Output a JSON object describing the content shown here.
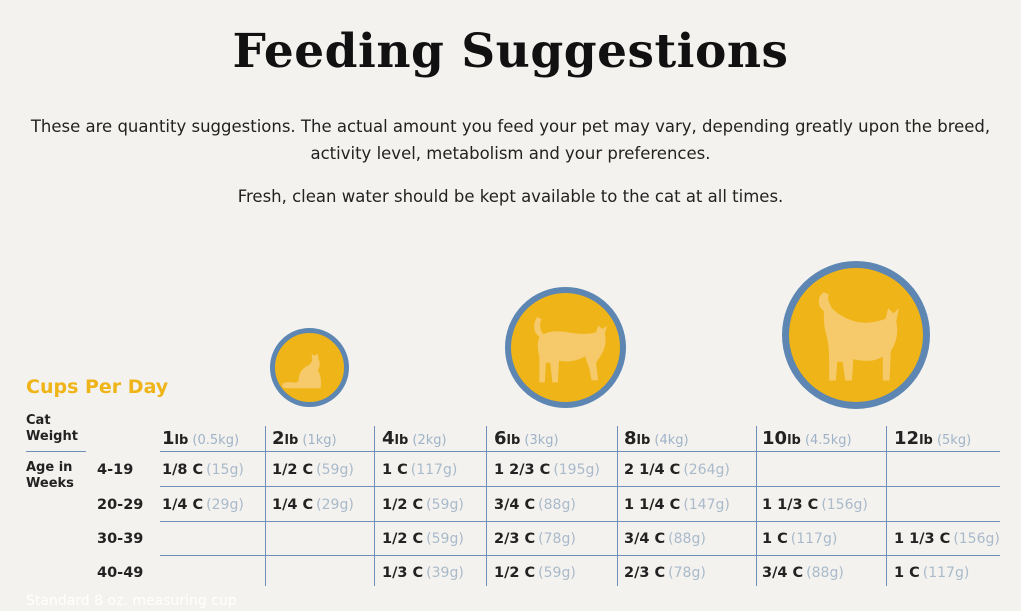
{
  "title": "Feeding Suggestions",
  "intro_line1": "These are quantity suggestions. The actual amount you feed your pet may vary, depending greatly upon the breed,",
  "intro_line2": "activity level, metabolism and your preferences.",
  "water_note": "Fresh, clean water should be kept available to the cat at all times.",
  "table_title": "Cups Per Day",
  "row_label_weight_1": "Cat",
  "row_label_weight_2": "Weight",
  "row_label_age_1": "Age in",
  "row_label_age_2": "Weeks",
  "weights": [
    {
      "num": "1",
      "unit": "lb",
      "metric": "(0.5kg)"
    },
    {
      "num": "2",
      "unit": "lb",
      "metric": "(1kg)"
    },
    {
      "num": "4",
      "unit": "lb",
      "metric": "(2kg)"
    },
    {
      "num": "6",
      "unit": "lb",
      "metric": "(3kg)"
    },
    {
      "num": "8",
      "unit": "lb",
      "metric": "(4kg)"
    },
    {
      "num": "10",
      "unit": "lb",
      "metric": "(4.5kg)"
    },
    {
      "num": "12",
      "unit": "lb",
      "metric": "(5kg)"
    }
  ],
  "rows": [
    {
      "weeks": "4-19",
      "cells": [
        {
          "q": "1/8 C",
          "g": "(15g)"
        },
        {
          "q": "1/2 C",
          "g": "(59g)"
        },
        {
          "q": "1 C",
          "g": "(117g)"
        },
        {
          "q": "1 2/3 C",
          "g": "(195g)"
        },
        {
          "q": "2 1/4 C",
          "g": "(264g)"
        },
        {
          "q": "",
          "g": ""
        },
        {
          "q": "",
          "g": ""
        }
      ]
    },
    {
      "weeks": "20-29",
      "cells": [
        {
          "q": "1/4 C",
          "g": "(29g)"
        },
        {
          "q": "1/4 C",
          "g": "(29g)"
        },
        {
          "q": "1/2 C",
          "g": "(59g)"
        },
        {
          "q": "3/4 C",
          "g": "(88g)"
        },
        {
          "q": "1 1/4 C",
          "g": "(147g)"
        },
        {
          "q": "1 1/3 C",
          "g": "(156g)"
        },
        {
          "q": "",
          "g": ""
        }
      ]
    },
    {
      "weeks": "30-39",
      "cells": [
        {
          "q": "",
          "g": ""
        },
        {
          "q": "",
          "g": ""
        },
        {
          "q": "1/2 C",
          "g": "(59g)"
        },
        {
          "q": "2/3 C",
          "g": "(78g)"
        },
        {
          "q": "3/4 C",
          "g": "(88g)"
        },
        {
          "q": "1 C",
          "g": "(117g)"
        },
        {
          "q": "1 1/3 C",
          "g": "(156g)"
        }
      ]
    },
    {
      "weeks": "40-49",
      "cells": [
        {
          "q": "",
          "g": ""
        },
        {
          "q": "",
          "g": ""
        },
        {
          "q": "1/3 C",
          "g": "(39g)"
        },
        {
          "q": "1/2 C",
          "g": "(59g)"
        },
        {
          "q": "2/3 C",
          "g": "(78g)"
        },
        {
          "q": "3/4 C",
          "g": "(88g)"
        },
        {
          "q": "1 C",
          "g": "(117g)"
        }
      ]
    }
  ],
  "footnote": "Standard 8 oz. measuring cup",
  "colors": {
    "background": "#f4f2ee",
    "accent_yellow": "#efb417",
    "circle_ring": "#5d86b3",
    "grid_line": "#6d8fb8",
    "gram_text": "#a9bacb"
  },
  "icons": [
    "cat-sitting-icon",
    "cat-standing-icon",
    "cat-large-icon"
  ]
}
